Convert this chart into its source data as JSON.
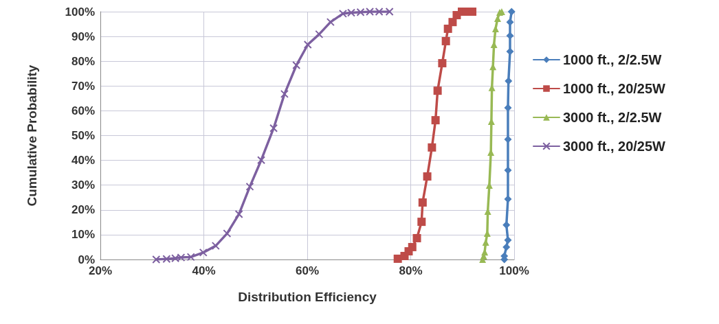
{
  "chart_data": {
    "type": "line",
    "xlabel": "Distribution Efficiency",
    "ylabel": "Cumulative Probability",
    "xlim": [
      20,
      100
    ],
    "xticks": [
      {
        "value": 20,
        "label": "20%"
      },
      {
        "value": 40,
        "label": "40%"
      },
      {
        "value": 60,
        "label": "60%"
      },
      {
        "value": 80,
        "label": "80%"
      },
      {
        "value": 100,
        "label": "100%"
      }
    ],
    "ylim": [
      0,
      100
    ],
    "yticks": [
      {
        "value": 0,
        "label": "0%"
      },
      {
        "value": 10,
        "label": "10%"
      },
      {
        "value": 20,
        "label": "20%"
      },
      {
        "value": 30,
        "label": "30%"
      },
      {
        "value": 40,
        "label": "40%"
      },
      {
        "value": 50,
        "label": "50%"
      },
      {
        "value": 60,
        "label": "60%"
      },
      {
        "value": 70,
        "label": "70%"
      },
      {
        "value": 80,
        "label": "80%"
      },
      {
        "value": 90,
        "label": "90%"
      },
      {
        "value": 100,
        "label": "100%"
      }
    ],
    "grid": true,
    "legend": "right",
    "line_style": "solid",
    "series": [
      {
        "name": "1000 ft., 2/2.5W",
        "color": "#4a7ebb",
        "marker": "diamond",
        "x": [
          98.1,
          98.1,
          98.5,
          98.8,
          98.5,
          98.8,
          98.8,
          98.8,
          98.8,
          98.9,
          99.2,
          99.2,
          99.2,
          99.5
        ],
        "values": [
          0,
          1.4,
          5,
          7.8,
          13.9,
          24.4,
          36,
          48.5,
          61.2,
          72,
          83.9,
          90.3,
          95.8,
          100
        ]
      },
      {
        "name": "1000 ft., 20/25W",
        "color": "#be4b48",
        "marker": "square",
        "x": [
          77.5,
          78.8,
          79.6,
          80.3,
          81.2,
          82.1,
          82.3,
          83.2,
          84.1,
          84.8,
          85.2,
          86.1,
          86.8,
          87.2,
          88.1,
          88.9,
          89.9,
          90.8,
          91.9
        ],
        "values": [
          0.3,
          1.4,
          3.3,
          5,
          8.6,
          15.2,
          23,
          33.5,
          45.2,
          56.2,
          68.1,
          79.2,
          88.1,
          93.1,
          95.8,
          98.6,
          100,
          100,
          100
        ]
      },
      {
        "name": "3000 ft., 2/2.5W",
        "color": "#98b954",
        "marker": "triangle",
        "x": [
          93.9,
          94.1,
          94.3,
          94.5,
          94.8,
          94.9,
          95.2,
          95.5,
          95.6,
          95.7,
          95.9,
          96.1,
          96.4,
          96.8,
          97.2,
          97.6
        ],
        "values": [
          0,
          1.4,
          3,
          6.9,
          10.5,
          19.4,
          29.9,
          43.2,
          55.7,
          69.3,
          77.8,
          86.7,
          93.1,
          97.2,
          99.7,
          100
        ]
      },
      {
        "name": "3000 ft., 20/25W",
        "color": "#7d60a0",
        "marker": "cross",
        "x": [
          30.8,
          32.8,
          34.5,
          35.6,
          37.5,
          39.9,
          42.3,
          44.5,
          46.8,
          48.9,
          51.1,
          53.5,
          55.6,
          57.9,
          60.1,
          62.3,
          64.5,
          66.9,
          68.5,
          70.3,
          72.1,
          73.9,
          75.9
        ],
        "values": [
          0,
          0.2,
          0.5,
          0.8,
          1,
          2.8,
          5.5,
          10.5,
          18.3,
          29.4,
          40.1,
          53,
          66.8,
          78.4,
          86.7,
          90.9,
          95.8,
          99.2,
          99.6,
          99.8,
          100,
          100,
          100
        ]
      }
    ]
  }
}
